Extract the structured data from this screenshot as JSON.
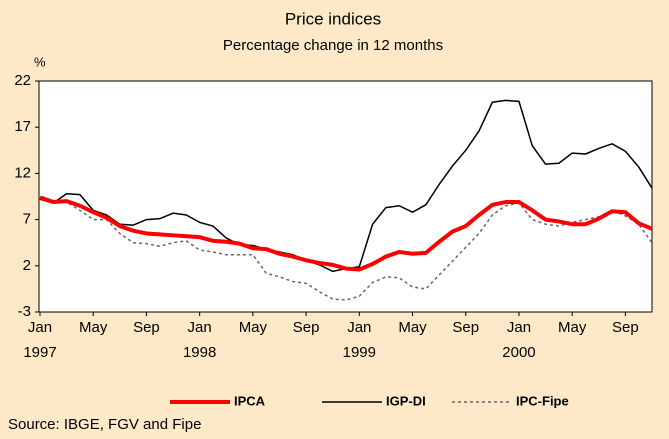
{
  "chart_data": {
    "type": "line",
    "title": "Price indices",
    "subtitle": "Percentage change in 12 months",
    "y_label": "%",
    "source": "Source: IBGE, FGV and Fipe",
    "categories": [
      "Jan",
      null,
      null,
      null,
      "May",
      null,
      null,
      null,
      "Sep",
      null,
      null,
      null,
      "Jan",
      null,
      null,
      null,
      "May",
      null,
      null,
      null,
      "Sep",
      null,
      null,
      null,
      "Jan",
      null,
      null,
      null,
      "May",
      null,
      null,
      null,
      "Sep",
      null,
      null,
      null,
      "Jan",
      null,
      null,
      null,
      "May",
      null,
      null,
      null,
      "Sep",
      null,
      null
    ],
    "years": [
      "1997",
      null,
      null,
      null,
      null,
      null,
      null,
      null,
      null,
      null,
      null,
      null,
      "1998",
      null,
      null,
      null,
      null,
      null,
      null,
      null,
      null,
      null,
      null,
      null,
      "1999",
      null,
      null,
      null,
      null,
      null,
      null,
      null,
      null,
      null,
      null,
      null,
      "2000",
      null,
      null,
      null,
      null,
      null,
      null,
      null,
      null,
      null,
      null
    ],
    "ylim": [
      -3,
      22
    ],
    "yticks": [
      -3,
      2,
      7,
      12,
      17,
      22
    ],
    "series": [
      {
        "name": "IPCA",
        "color": "#ff0000",
        "style": "thick",
        "values": [
          9.4,
          8.9,
          9.0,
          8.5,
          7.8,
          7.2,
          6.3,
          5.8,
          5.5,
          5.4,
          5.3,
          5.2,
          5.1,
          4.7,
          4.6,
          4.4,
          3.9,
          3.8,
          3.3,
          3.0,
          2.6,
          2.3,
          2.1,
          1.7,
          1.6,
          2.2,
          3.0,
          3.5,
          3.3,
          3.4,
          4.6,
          5.7,
          6.3,
          7.5,
          8.6,
          8.9,
          8.9,
          8.0,
          7.0,
          6.8,
          6.5,
          6.5,
          7.1,
          7.9,
          7.8,
          6.6,
          6.0
        ]
      },
      {
        "name": "IGP-DI",
        "color": "#000000",
        "style": "solid",
        "values": [
          9.2,
          8.8,
          9.8,
          9.7,
          8.0,
          7.5,
          6.5,
          6.4,
          7.0,
          7.1,
          7.7,
          7.5,
          6.7,
          6.3,
          5.0,
          4.3,
          4.2,
          3.8,
          3.5,
          3.2,
          2.6,
          2.1,
          1.4,
          1.7,
          1.9,
          6.5,
          8.3,
          8.5,
          7.8,
          8.6,
          10.8,
          12.8,
          14.5,
          16.6,
          19.7,
          19.9,
          19.8,
          15.0,
          13.0,
          13.1,
          14.2,
          14.1,
          14.7,
          15.2,
          14.4,
          12.7,
          10.4
        ]
      },
      {
        "name": "IPC-Fipe",
        "color": "#666666",
        "style": "dashed",
        "values": [
          9.3,
          8.8,
          8.9,
          8.0,
          7.0,
          7.0,
          5.5,
          4.5,
          4.4,
          4.1,
          4.5,
          4.7,
          3.7,
          3.5,
          3.2,
          3.2,
          3.2,
          1.2,
          0.8,
          0.3,
          0.1,
          -0.8,
          -1.6,
          -1.7,
          -1.3,
          0.2,
          0.8,
          0.7,
          -0.3,
          -0.5,
          1.0,
          2.5,
          4.0,
          5.5,
          7.5,
          8.5,
          8.8,
          7.0,
          6.5,
          6.3,
          6.7,
          7.0,
          7.3,
          8.0,
          7.4,
          6.5,
          4.5
        ]
      }
    ]
  }
}
